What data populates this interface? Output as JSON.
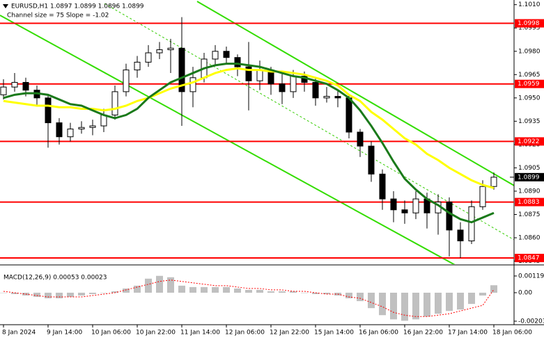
{
  "chart_data": [
    {
      "type": "candlestick",
      "title": "EURUSD,H1  1.0897 1.0899 1.0896 1.0899",
      "subtitle": "Channel size = 75 Slope = -1.02",
      "categories": [
        "8 Jan 2024",
        null,
        null,
        null,
        "9 Jan 14:00",
        null,
        null,
        null,
        "10 Jan 06:00",
        null,
        null,
        null,
        "10 Jan 22:00",
        null,
        null,
        null,
        "11 Jan 14:00",
        null,
        null,
        null,
        "12 Jan 06:00",
        null,
        null,
        null,
        "12 Jan 22:00",
        null,
        null,
        null,
        "15 Jan 14:00",
        null,
        null,
        null,
        "16 Jan 06:00",
        null,
        null,
        null,
        "16 Jan 22:00",
        null,
        null,
        null,
        "17 Jan 14:00",
        null,
        null,
        null,
        "18 Jan 06:00"
      ],
      "open": [
        1.0952,
        1.0957,
        1.096,
        1.0955,
        1.095,
        1.0934,
        1.0925,
        1.093,
        1.0931,
        1.0932,
        1.0939,
        1.0954,
        1.0968,
        1.0973,
        1.0979,
        1.0981,
        1.0982,
        1.0954,
        1.0963,
        1.0975,
        1.098,
        1.0976,
        1.097,
        1.0961,
        1.0968,
        1.0959,
        1.0954,
        1.0964,
        1.096,
        1.095,
        1.0951,
        1.095,
        1.0928,
        1.0919,
        1.0901,
        1.0885,
        1.0878,
        1.0876,
        1.0885,
        1.0876,
        1.0883,
        1.0865,
        1.0858,
        1.088,
        1.0893
      ],
      "high": [
        1.0962,
        1.0966,
        1.0963,
        1.0958,
        1.0952,
        1.0937,
        1.0934,
        1.0935,
        1.0936,
        1.0943,
        1.0958,
        1.0972,
        1.0977,
        1.0984,
        1.0986,
        1.0988,
        1.1002,
        1.097,
        1.0979,
        1.0984,
        1.0983,
        1.0978,
        1.0986,
        1.0974,
        1.097,
        1.0966,
        1.0968,
        1.0967,
        1.0963,
        1.0957,
        1.0955,
        1.0952,
        1.093,
        1.0922,
        1.0904,
        1.089,
        1.0884,
        1.089,
        1.0889,
        1.0888,
        1.0886,
        1.087,
        1.0884,
        1.0897,
        1.0902
      ],
      "low": [
        1.0949,
        1.0954,
        1.0951,
        1.0945,
        1.0918,
        1.092,
        1.0922,
        1.0927,
        1.0926,
        1.0928,
        1.0936,
        1.0951,
        1.0963,
        1.097,
        1.0975,
        1.0966,
        1.0932,
        1.0944,
        1.096,
        1.0971,
        1.0972,
        1.0964,
        1.0942,
        1.0955,
        1.0952,
        1.0946,
        1.095,
        1.0954,
        1.0945,
        1.0947,
        1.0944,
        1.0924,
        1.0912,
        1.0896,
        1.0878,
        1.087,
        1.0869,
        1.0872,
        1.0866,
        1.0862,
        1.0848,
        1.0847,
        1.0856,
        1.0878,
        1.0891
      ],
      "close": [
        1.0957,
        1.096,
        1.0955,
        1.095,
        1.0934,
        1.0925,
        1.093,
        1.0931,
        1.0932,
        1.0939,
        1.0954,
        1.0968,
        1.0973,
        1.0979,
        1.0981,
        1.0982,
        1.0954,
        1.0963,
        1.0975,
        1.098,
        1.0976,
        1.097,
        1.0961,
        1.0968,
        1.0959,
        1.0954,
        1.0964,
        1.096,
        1.095,
        1.0951,
        1.095,
        1.0928,
        1.0919,
        1.0901,
        1.0885,
        1.0878,
        1.0876,
        1.0885,
        1.0876,
        1.0883,
        1.0865,
        1.0858,
        1.088,
        1.0893,
        1.0899
      ],
      "lines": [
        {
          "color": "#ffff00",
          "values": [
            1.0948,
            1.0947,
            1.0946,
            1.0945,
            1.0945,
            1.0944,
            1.0944,
            1.0943,
            1.0943,
            1.0942,
            1.0943,
            1.0945,
            1.0948,
            1.095,
            1.0953,
            1.0956,
            1.0958,
            1.096,
            1.0963,
            1.0966,
            1.0968,
            1.0969,
            1.0968,
            1.0968,
            1.0967,
            1.0967,
            1.0966,
            1.0965,
            1.0963,
            1.0961,
            1.0958,
            1.0952,
            1.0948,
            1.0941,
            1.0936,
            1.093,
            1.0924,
            1.092,
            1.0914,
            1.091,
            1.0905,
            1.0901,
            1.0897,
            1.0894,
            1.0892
          ]
        },
        {
          "color": "#1a7a1a",
          "values": [
            1.095,
            1.0952,
            1.0953,
            1.0953,
            1.0952,
            1.0949,
            1.0946,
            1.0945,
            1.0942,
            1.0939,
            1.0937,
            1.0939,
            1.0943,
            1.095,
            1.0955,
            1.096,
            1.0963,
            1.0966,
            1.0969,
            1.0971,
            1.0972,
            1.0972,
            1.0971,
            1.097,
            1.0968,
            1.0966,
            1.0964,
            1.0963,
            1.0961,
            1.0959,
            1.0955,
            1.095,
            1.0942,
            1.0932,
            1.0921,
            1.0909,
            1.0898,
            1.0891,
            1.0885,
            1.0881,
            1.0876,
            1.0872,
            1.087,
            1.0873,
            1.0876
          ]
        }
      ],
      "levels": {
        "color": "#ff0000",
        "values": [
          1.0998,
          1.0959,
          1.0922,
          1.0883,
          1.0847
        ]
      },
      "last_price": 1.0899,
      "ylim": [
        1.0843,
        1.1013
      ],
      "yticks": [
        {
          "value": 1.101,
          "label": "1.1010"
        },
        1.0995,
        {
          "value": 1.098,
          "label": "1.0980"
        },
        1.0965,
        {
          "value": 1.095,
          "label": "1.0950"
        },
        1.0935,
        {
          "value": 1.092,
          "label": "1.0920"
        },
        1.0905,
        {
          "value": 1.089,
          "label": "1.0890"
        },
        1.0875,
        {
          "value": 1.086,
          "label": "1.0860"
        },
        1.0845
      ]
    },
    {
      "type": "macd",
      "title": "MACD(12,26,9) 0.00053 0.00023",
      "histogram": {
        "color": "#c0c0c0",
        "values": [
          0.0,
          -0.0001,
          -0.0002,
          -0.0003,
          -0.0004,
          -0.0004,
          -0.0003,
          -0.0002,
          -0.0001,
          0.0,
          0.0001,
          0.0003,
          0.0005,
          0.001,
          0.0012,
          0.0011,
          0.0005,
          0.0004,
          0.0004,
          0.0004,
          0.0004,
          0.0003,
          0.0002,
          0.0002,
          0.0001,
          0.0001,
          0.0001,
          0.0,
          -0.0001,
          -0.0001,
          -0.0002,
          -0.0004,
          -0.0006,
          -0.0011,
          -0.0016,
          -0.0019,
          -0.002,
          -0.0019,
          -0.0017,
          -0.0015,
          -0.0013,
          -0.0012,
          -0.0008,
          -0.0002,
          0.00053
        ]
      },
      "signal": {
        "color": "#ff0000",
        "values": [
          0.0001,
          0.0,
          -0.0001,
          -0.0002,
          -0.0003,
          -0.0003,
          -0.0003,
          -0.0003,
          -0.0002,
          -0.0001,
          0.0,
          0.0002,
          0.0004,
          0.0006,
          0.0008,
          0.0009,
          0.0008,
          0.0007,
          0.0006,
          0.0005,
          0.0005,
          0.0004,
          0.0003,
          0.0003,
          0.0002,
          0.0002,
          0.0001,
          0.0001,
          0.0,
          -0.0001,
          -0.0001,
          -0.0003,
          -0.0004,
          -0.0007,
          -0.001,
          -0.0014,
          -0.0016,
          -0.0017,
          -0.0017,
          -0.0016,
          -0.0015,
          -0.0013,
          -0.0011,
          -0.0009,
          0.00023
        ]
      },
      "ylim": [
        -0.00228,
        0.00193
      ],
      "yticks": [
        0.00119,
        {
          "value": 0,
          "label": "0.00"
        },
        -0.00203
      ]
    }
  ]
}
